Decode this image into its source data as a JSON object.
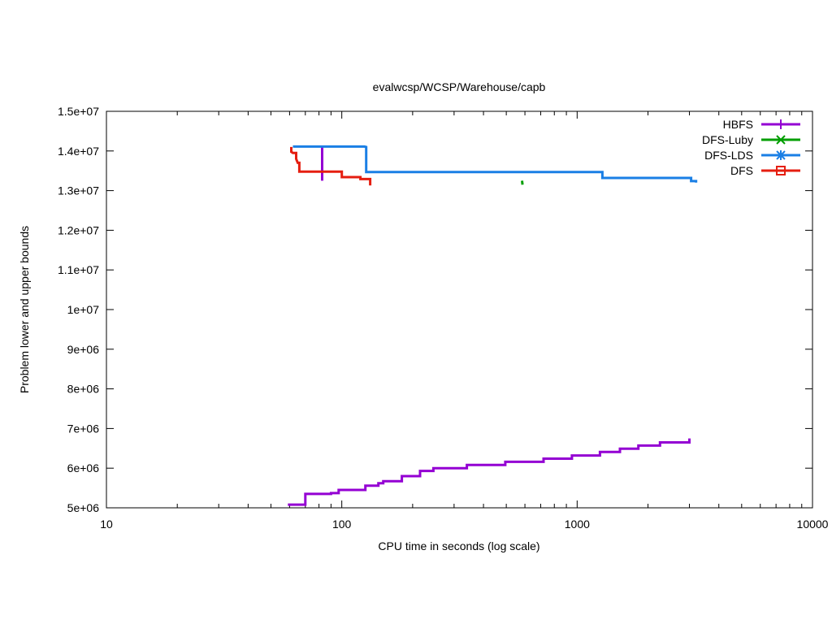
{
  "chart_data": {
    "type": "line",
    "title": "evalwcsp/WCSP/Warehouse/capb",
    "xlabel": "CPU time in seconds (log scale)",
    "ylabel": "Problem lower and upper bounds",
    "xscale": "log",
    "xlim": [
      10,
      10000
    ],
    "ylim": [
      5000000,
      15000000
    ],
    "x_ticks": [
      {
        "value": 10,
        "label": "10"
      },
      {
        "value": 100,
        "label": "100"
      },
      {
        "value": 1000,
        "label": "1000"
      },
      {
        "value": 10000,
        "label": "10000"
      }
    ],
    "y_ticks": [
      {
        "value": 5000000,
        "label": "5e+06"
      },
      {
        "value": 6000000,
        "label": "6e+06"
      },
      {
        "value": 7000000,
        "label": "7e+06"
      },
      {
        "value": 8000000,
        "label": "8e+06"
      },
      {
        "value": 9000000,
        "label": "9e+06"
      },
      {
        "value": 10000000,
        "label": "1e+07"
      },
      {
        "value": 11000000,
        "label": "1.1e+07"
      },
      {
        "value": 12000000,
        "label": "1.2e+07"
      },
      {
        "value": 13000000,
        "label": "1.3e+07"
      },
      {
        "value": 14000000,
        "label": "1.4e+07"
      },
      {
        "value": 15000000,
        "label": "1.5e+07"
      }
    ],
    "grid": false,
    "legend_position": "top-right",
    "series": [
      {
        "name": "HBFS",
        "color": "#9400d3",
        "marker": "plus",
        "steps": [
          [
            [
              82.5,
              14100000
            ],
            [
              82.5,
              13250000
            ]
          ],
          [
            [
              59,
              5080000
            ],
            [
              70,
              5080000
            ],
            [
              70,
              5350000
            ],
            [
              90,
              5350000
            ],
            [
              90,
              5370000
            ],
            [
              97,
              5370000
            ],
            [
              97,
              5450000
            ],
            [
              126,
              5450000
            ],
            [
              126,
              5560000
            ],
            [
              143,
              5560000
            ],
            [
              143,
              5620000
            ],
            [
              150,
              5620000
            ],
            [
              150,
              5670000
            ],
            [
              180,
              5670000
            ],
            [
              180,
              5800000
            ],
            [
              215,
              5800000
            ],
            [
              215,
              5930000
            ],
            [
              245,
              5930000
            ],
            [
              245,
              6000000
            ],
            [
              340,
              6000000
            ],
            [
              340,
              6080000
            ],
            [
              495,
              6080000
            ],
            [
              495,
              6160000
            ],
            [
              720,
              6160000
            ],
            [
              720,
              6240000
            ],
            [
              950,
              6240000
            ],
            [
              950,
              6320000
            ],
            [
              1250,
              6320000
            ],
            [
              1250,
              6410000
            ],
            [
              1520,
              6410000
            ],
            [
              1520,
              6490000
            ],
            [
              1820,
              6490000
            ],
            [
              1820,
              6570000
            ],
            [
              2250,
              6570000
            ],
            [
              2250,
              6650000
            ],
            [
              3000,
              6650000
            ],
            [
              3000,
              6750000
            ]
          ]
        ]
      },
      {
        "name": "DFS-Luby",
        "color": "#009e00",
        "marker": "x",
        "steps": [
          [
            [
              583,
              13250000
            ],
            [
              586,
              13150000
            ]
          ]
        ]
      },
      {
        "name": "DFS-LDS",
        "color": "#1a7fe5",
        "marker": "star",
        "steps": [
          [
            [
              62,
              14110000
            ],
            [
              125,
              14110000
            ],
            [
              127,
              14100000
            ],
            [
              127,
              13470000
            ],
            [
              1280,
              13470000
            ],
            [
              1280,
              13320000
            ],
            [
              3050,
              13320000
            ],
            [
              3050,
              13240000
            ],
            [
              3200,
              13240000
            ],
            [
              3200,
              13200000
            ]
          ]
        ]
      },
      {
        "name": "DFS",
        "color": "#e51e10",
        "marker": "box",
        "steps": [
          [
            [
              61,
              14100000
            ],
            [
              61,
              13980000
            ],
            [
              62,
              13950000
            ],
            [
              64,
              13950000
            ],
            [
              64,
              13800000
            ],
            [
              65,
              13700000
            ],
            [
              66,
              13700000
            ],
            [
              66,
              13480000
            ],
            [
              100,
              13480000
            ],
            [
              100,
              13340000
            ],
            [
              120,
              13340000
            ],
            [
              120,
              13290000
            ],
            [
              132,
              13290000
            ],
            [
              132,
              13130000
            ]
          ]
        ]
      }
    ]
  }
}
